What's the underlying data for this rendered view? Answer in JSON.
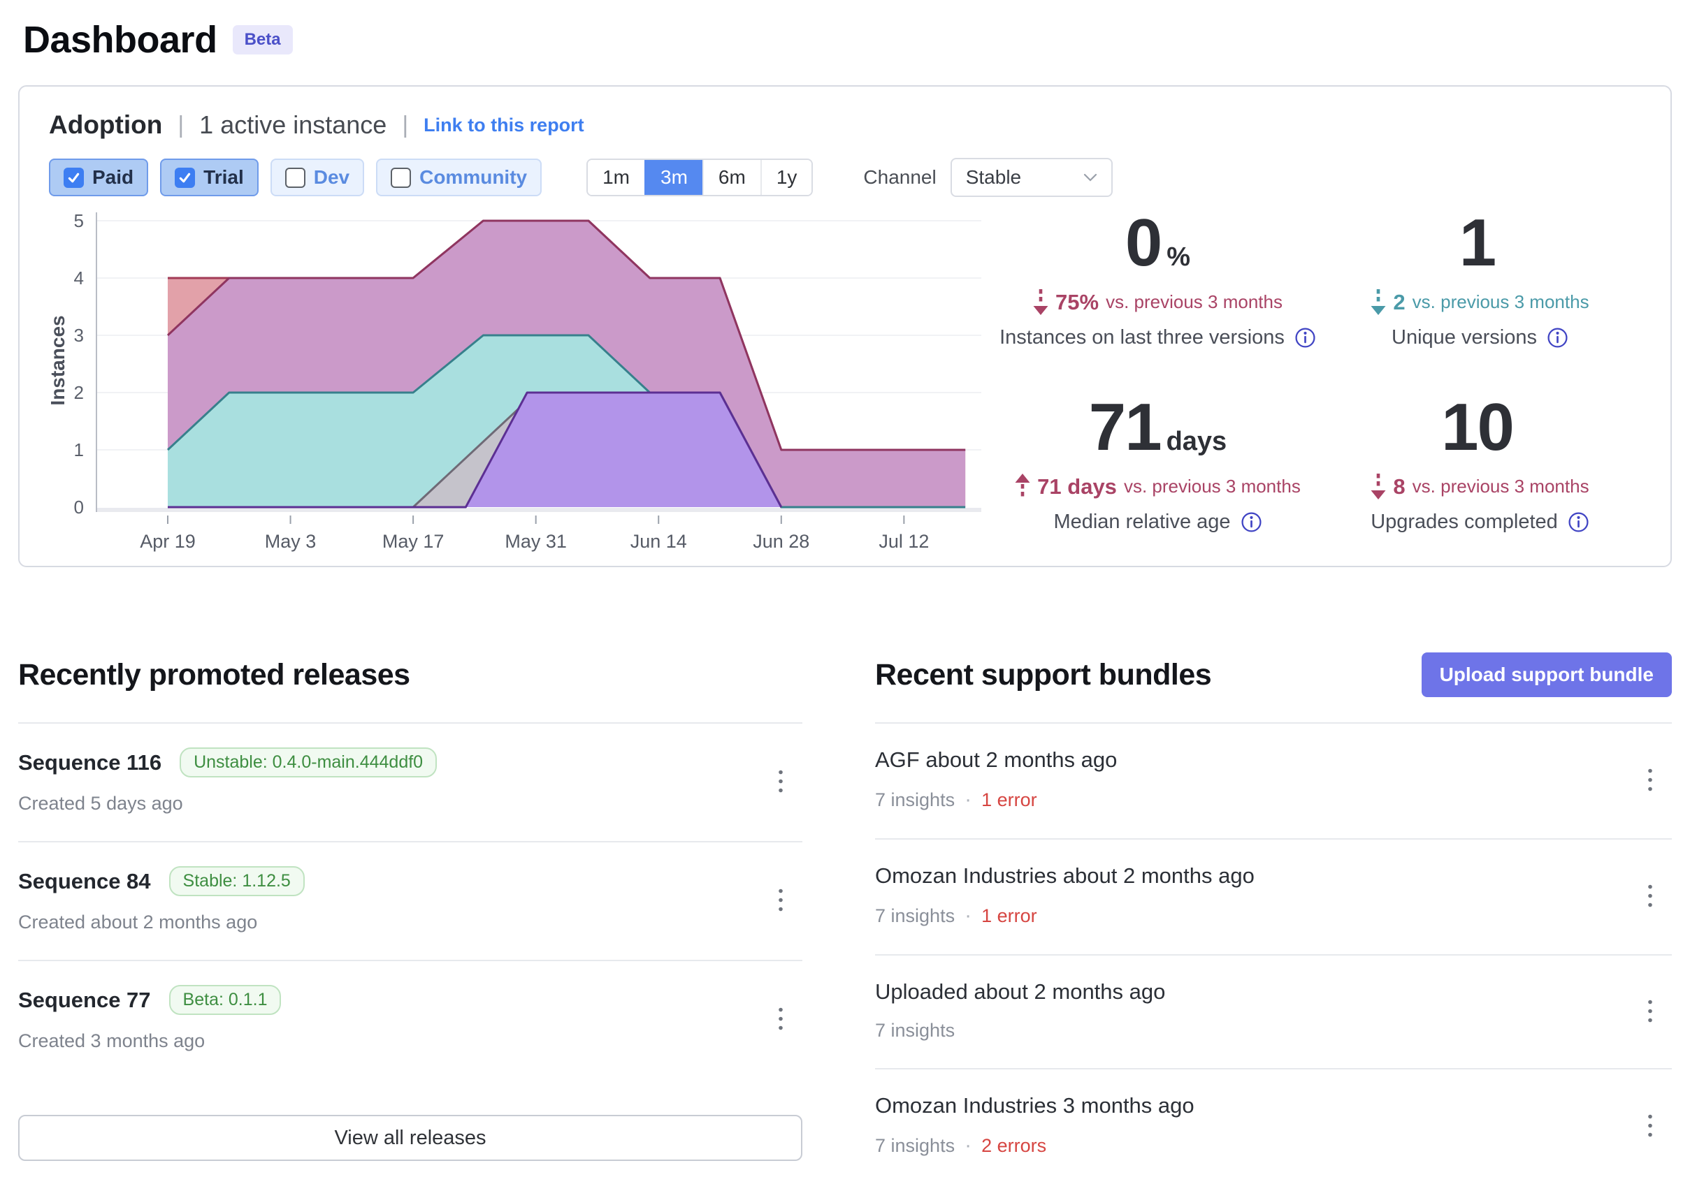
{
  "page": {
    "title": "Dashboard",
    "badge": "Beta"
  },
  "adoption": {
    "title": "Adoption",
    "active": "1 active instance",
    "link": "Link to this report",
    "filters": [
      {
        "label": "Paid",
        "checked": true
      },
      {
        "label": "Trial",
        "checked": true
      },
      {
        "label": "Dev",
        "checked": false
      },
      {
        "label": "Community",
        "checked": false
      }
    ],
    "ranges": [
      {
        "label": "1m",
        "active": false
      },
      {
        "label": "3m",
        "active": true
      },
      {
        "label": "6m",
        "active": false
      },
      {
        "label": "1y",
        "active": false
      }
    ],
    "channel_label": "Channel",
    "channel_value": "Stable",
    "stats": [
      {
        "value": "0",
        "unit": "%",
        "direction": "down",
        "color": "#a94365",
        "delta": "75%",
        "suffix": "vs. previous 3 months",
        "label": "Instances on last three versions"
      },
      {
        "value": "1",
        "unit": "",
        "direction": "down",
        "color": "#4a9aa8",
        "delta": "2",
        "suffix": "vs. previous 3 months",
        "label": "Unique versions"
      },
      {
        "value": "71",
        "unit": "days",
        "direction": "up",
        "color": "#a94365",
        "delta": "71 days",
        "suffix": "vs. previous 3 months",
        "label": "Median relative age"
      },
      {
        "value": "10",
        "unit": "",
        "direction": "down",
        "color": "#a94365",
        "delta": "8",
        "suffix": "vs. previous 3 months",
        "label": "Upgrades completed"
      }
    ]
  },
  "chart_data": {
    "type": "area",
    "title": "Adoption instances by version over time",
    "ylabel": "Instances",
    "ylim": [
      0,
      5
    ],
    "y_ticks": [
      0,
      1,
      2,
      3,
      4,
      5
    ],
    "x_ticks": [
      "Apr 19",
      "May 3",
      "May 17",
      "May 31",
      "Jun 14",
      "Jun 28",
      "Jul 12"
    ],
    "tick_interval_days": 14,
    "x_domain_days": [
      0,
      91
    ],
    "legend": "none",
    "grid": "horizontal",
    "series": [
      {
        "name": "version-salmon",
        "fill": "#e2a1a9",
        "line": "#a23a56",
        "points": [
          [
            0,
            4
          ],
          [
            7,
            4
          ],
          [
            28,
            4
          ],
          [
            36,
            5
          ],
          [
            48,
            5
          ],
          [
            55,
            4
          ],
          [
            63,
            4
          ],
          [
            70,
            1
          ],
          [
            91,
            1
          ]
        ]
      },
      {
        "name": "version-mauve",
        "fill": "#cb9ac9",
        "line": "#8f3560",
        "points": [
          [
            0,
            3
          ],
          [
            7,
            4
          ],
          [
            28,
            4
          ],
          [
            36,
            5
          ],
          [
            48,
            5
          ],
          [
            55,
            4
          ],
          [
            63,
            4
          ],
          [
            70,
            1
          ],
          [
            91,
            1
          ]
        ]
      },
      {
        "name": "version-teal",
        "fill": "#a9dfdf",
        "line": "#37808c",
        "points": [
          [
            0,
            1
          ],
          [
            7,
            2
          ],
          [
            28,
            2
          ],
          [
            36,
            3
          ],
          [
            48,
            3
          ],
          [
            55,
            2
          ],
          [
            63,
            2
          ],
          [
            70,
            0
          ],
          [
            91,
            0
          ]
        ]
      },
      {
        "name": "version-gray",
        "fill": "#c5c3cb",
        "line": "#6f6a76",
        "points": [
          [
            0,
            0
          ],
          [
            28,
            0
          ],
          [
            42,
            2
          ],
          [
            63,
            2
          ],
          [
            70,
            0
          ]
        ]
      },
      {
        "name": "version-violet",
        "fill": "#b294ea",
        "line": "#5c2f93",
        "points": [
          [
            0,
            0
          ],
          [
            34,
            0
          ],
          [
            41,
            2
          ],
          [
            63,
            2
          ],
          [
            70,
            0
          ]
        ]
      }
    ]
  },
  "releases": {
    "heading": "Recently promoted releases",
    "view_all": "View all releases",
    "items": [
      {
        "title": "Sequence 116",
        "badge": "Unstable: 0.4.0-main.444ddf0",
        "created": "Created 5 days ago"
      },
      {
        "title": "Sequence 84",
        "badge": "Stable: 1.12.5",
        "created": "Created about 2 months ago"
      },
      {
        "title": "Sequence 77",
        "badge": "Beta: 0.1.1",
        "created": "Created 3 months ago"
      }
    ]
  },
  "bundles": {
    "heading": "Recent support bundles",
    "upload_button": "Upload support bundle",
    "items": [
      {
        "title": "AGF about 2 months ago",
        "insights": "7 insights",
        "errors": "1 error"
      },
      {
        "title": "Omozan Industries about 2 months ago",
        "insights": "7 insights",
        "errors": "1 error"
      },
      {
        "title": "Uploaded about 2 months ago",
        "insights": "7 insights",
        "errors": ""
      },
      {
        "title": "Omozan Industries 3 months ago",
        "insights": "7 insights",
        "errors": "2 errors"
      }
    ]
  },
  "colors": {
    "link_blue": "#3e7ef0",
    "accent_indigo": "#6e74e8",
    "active_range_blue": "#5589f0",
    "negative_crimson": "#a94365",
    "positive_teal": "#4a9aa8",
    "error_red": "#d64541",
    "badge_green": "#3e8e41"
  }
}
